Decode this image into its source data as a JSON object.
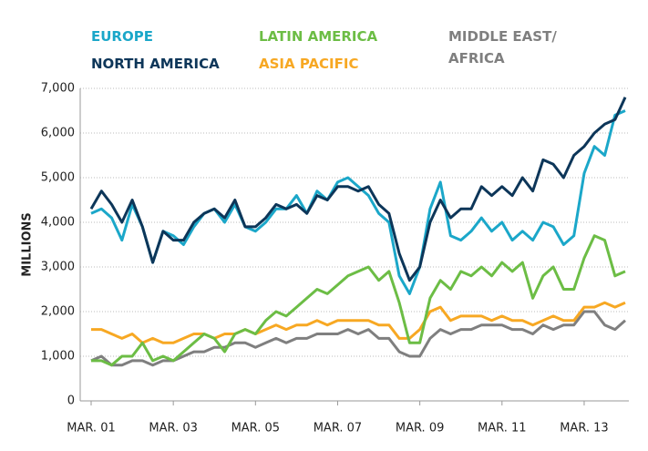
{
  "chart_data": {
    "type": "line",
    "ylabel": "MILLIONS",
    "categories": [
      "MAR. 01",
      null,
      null,
      null,
      null,
      null,
      null,
      null,
      "MAR. 03",
      null,
      null,
      null,
      null,
      null,
      null,
      null,
      "MAR. 05",
      null,
      null,
      null,
      null,
      null,
      null,
      null,
      "MAR. 07",
      null,
      null,
      null,
      null,
      null,
      null,
      null,
      "MAR. 09",
      null,
      null,
      null,
      null,
      null,
      null,
      null,
      "MAR. 11",
      null,
      null,
      null,
      null,
      null,
      null,
      null,
      "MAR. 13",
      null,
      null,
      null,
      null
    ],
    "ylim": [
      0,
      7000
    ],
    "yticks": [
      0,
      {
        "value": 1000,
        "label": "1,000"
      },
      {
        "value": 2000,
        "label": "2,000"
      },
      {
        "value": 3000,
        "label": "3,000"
      },
      {
        "value": 4000,
        "label": "4,000"
      },
      {
        "value": 5000,
        "label": "5,000"
      },
      {
        "value": 6000,
        "label": "6,000"
      },
      {
        "value": 7000,
        "label": "7,000"
      }
    ],
    "grid": true,
    "series": [
      {
        "name": "EUROPE",
        "color": "#1ba7c9",
        "values": [
          4200,
          4300,
          4100,
          3600,
          4400,
          3900,
          3100,
          3800,
          3700,
          3500,
          3900,
          4200,
          4300,
          4000,
          4400,
          3900,
          3800,
          4000,
          4300,
          4300,
          4600,
          4200,
          4700,
          4500,
          4900,
          5000,
          4800,
          4600,
          4200,
          4000,
          2800,
          2400,
          3000,
          4300,
          4900,
          3700,
          3600,
          3800,
          4100,
          3800,
          4000,
          3600,
          3800,
          3600,
          4000,
          3900,
          3500,
          3700,
          5100,
          5700,
          5500,
          6400,
          6500
        ]
      },
      {
        "name": "NORTH AMERICA",
        "color": "#0d3659",
        "values": [
          4300,
          4700,
          4400,
          4000,
          4500,
          3900,
          3100,
          3800,
          3600,
          3600,
          4000,
          4200,
          4300,
          4100,
          4500,
          3900,
          3900,
          4100,
          4400,
          4300,
          4400,
          4200,
          4600,
          4500,
          4800,
          4800,
          4700,
          4800,
          4400,
          4200,
          3300,
          2700,
          3000,
          4000,
          4500,
          4100,
          4300,
          4300,
          4800,
          4600,
          4800,
          4600,
          5000,
          4700,
          5400,
          5300,
          5000,
          5500,
          5700,
          6000,
          6200,
          6300,
          6800
        ]
      },
      {
        "name": "LATIN AMERICA",
        "color": "#6cbd45",
        "values": [
          900,
          900,
          800,
          1000,
          1000,
          1300,
          900,
          1000,
          900,
          1100,
          1300,
          1500,
          1400,
          1100,
          1500,
          1600,
          1500,
          1800,
          2000,
          1900,
          2100,
          2300,
          2500,
          2400,
          2600,
          2800,
          2900,
          3000,
          2700,
          2900,
          2200,
          1300,
          1300,
          2300,
          2700,
          2500,
          2900,
          2800,
          3000,
          2800,
          3100,
          2900,
          3100,
          2300,
          2800,
          3000,
          2500,
          2500,
          3200,
          3700,
          3600,
          2800,
          2900
        ]
      },
      {
        "name": "ASIA PACIFIC",
        "color": "#f7a823",
        "values": [
          1600,
          1600,
          1500,
          1400,
          1500,
          1300,
          1400,
          1300,
          1300,
          1400,
          1500,
          1500,
          1400,
          1500,
          1500,
          1600,
          1500,
          1600,
          1700,
          1600,
          1700,
          1700,
          1800,
          1700,
          1800,
          1800,
          1800,
          1800,
          1700,
          1700,
          1400,
          1400,
          1600,
          2000,
          2100,
          1800,
          1900,
          1900,
          1900,
          1800,
          1900,
          1800,
          1800,
          1700,
          1800,
          1900,
          1800,
          1800,
          2100,
          2100,
          2200,
          2100,
          2200
        ]
      },
      {
        "name": "MIDDLE EAST/ AFRICA",
        "color": "#7f7f7f",
        "values": [
          900,
          1000,
          800,
          800,
          900,
          900,
          800,
          900,
          900,
          1000,
          1100,
          1100,
          1200,
          1200,
          1300,
          1300,
          1200,
          1300,
          1400,
          1300,
          1400,
          1400,
          1500,
          1500,
          1500,
          1600,
          1500,
          1600,
          1400,
          1400,
          1100,
          1000,
          1000,
          1400,
          1600,
          1500,
          1600,
          1600,
          1700,
          1700,
          1700,
          1600,
          1600,
          1500,
          1700,
          1600,
          1700,
          1700,
          2000,
          2000,
          1700,
          1600,
          1800
        ]
      }
    ]
  }
}
